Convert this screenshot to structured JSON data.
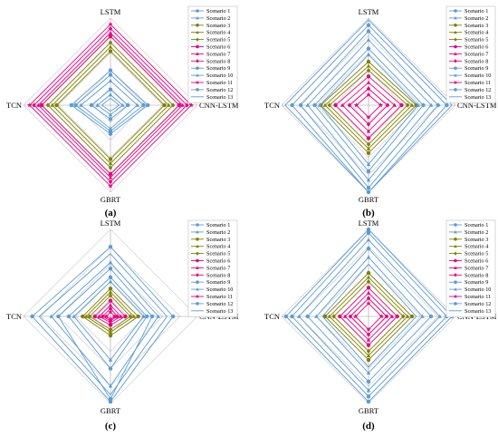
{
  "figure": {
    "panel_labels": [
      "(a)",
      "(b)",
      "(c)",
      "(d)"
    ]
  },
  "style": {
    "blue": "#5b9bd5",
    "olive": "#808000",
    "pink": "#e6007e",
    "grid": "#c8c8c8",
    "axis": "#a0a0a0"
  },
  "chart_data": [
    {
      "type": "radar",
      "panel": "(a)",
      "axes": [
        "LSTM",
        "CNN-LSTM",
        "GBRT",
        "TCN"
      ],
      "grid_rings": 5,
      "series": [
        {
          "name": "Scenario 1",
          "color": "#5b9bd5",
          "marker": "circle",
          "values": [
            0.4,
            0.43,
            0.33,
            0.45
          ]
        },
        {
          "name": "Scenario 2",
          "color": "#5b9bd5",
          "marker": "triangle",
          "values": [
            0.28,
            0.31,
            0.27,
            0.34
          ]
        },
        {
          "name": "Scenario 3",
          "color": "#808000",
          "marker": "circle",
          "values": [
            0.62,
            0.62,
            0.62,
            0.62
          ]
        },
        {
          "name": "Scenario 4",
          "color": "#808000",
          "marker": "triangle",
          "values": [
            0.67,
            0.67,
            0.67,
            0.67
          ]
        },
        {
          "name": "Scenario 5",
          "color": "#808000",
          "marker": "diamond",
          "values": [
            0.72,
            0.72,
            0.72,
            0.72
          ]
        },
        {
          "name": "Scenario 6",
          "color": "#e6007e",
          "marker": "circle",
          "values": [
            0.79,
            0.79,
            0.79,
            0.79
          ]
        },
        {
          "name": "Scenario 7",
          "color": "#e6007e",
          "marker": "triangle",
          "values": [
            0.83,
            0.83,
            0.83,
            0.83
          ]
        },
        {
          "name": "Scenario 8",
          "color": "#e6007e",
          "marker": "diamond",
          "values": [
            0.88,
            0.88,
            0.88,
            0.88
          ]
        },
        {
          "name": "Scenario 9",
          "color": "#5b9bd5",
          "marker": "circle",
          "values": [
            0.18,
            0.2,
            0.16,
            0.22
          ]
        },
        {
          "name": "Scenario 10",
          "color": "#5b9bd5",
          "marker": "triangle",
          "values": [
            0.12,
            0.14,
            0.11,
            0.15
          ]
        },
        {
          "name": "Scenario 11",
          "color": "#e6007e",
          "marker": "star",
          "values": [
            0.93,
            0.93,
            0.93,
            0.93
          ]
        },
        {
          "name": "Scenario 12",
          "color": "#5b9bd5",
          "marker": "circle",
          "values": [
            0.35,
            0.38,
            0.3,
            0.4
          ]
        },
        {
          "name": "Scenario 13",
          "color": "#5b9bd5",
          "marker": "none",
          "values": [
            0.08,
            0.1,
            0.07,
            0.1
          ]
        }
      ]
    },
    {
      "type": "radar",
      "panel": "(b)",
      "axes": [
        "LSTM",
        "CNN-LSTM",
        "GBRT",
        "TCN"
      ],
      "grid_rings": 5,
      "series": [
        {
          "name": "Scenario 1",
          "color": "#5b9bd5",
          "marker": "circle",
          "values": [
            0.85,
            0.8,
            0.95,
            0.78
          ]
        },
        {
          "name": "Scenario 2",
          "color": "#5b9bd5",
          "marker": "triangle",
          "values": [
            0.75,
            0.72,
            0.86,
            0.7
          ]
        },
        {
          "name": "Scenario 3",
          "color": "#808000",
          "marker": "circle",
          "values": [
            0.5,
            0.55,
            0.55,
            0.55
          ]
        },
        {
          "name": "Scenario 4",
          "color": "#808000",
          "marker": "triangle",
          "values": [
            0.45,
            0.5,
            0.5,
            0.5
          ]
        },
        {
          "name": "Scenario 5",
          "color": "#808000",
          "marker": "diamond",
          "values": [
            0.4,
            0.45,
            0.45,
            0.45
          ]
        },
        {
          "name": "Scenario 6",
          "color": "#e6007e",
          "marker": "circle",
          "values": [
            0.33,
            0.38,
            0.38,
            0.38
          ]
        },
        {
          "name": "Scenario 7",
          "color": "#e6007e",
          "marker": "triangle",
          "values": [
            0.26,
            0.3,
            0.3,
            0.3
          ]
        },
        {
          "name": "Scenario 8",
          "color": "#e6007e",
          "marker": "diamond",
          "values": [
            0.19,
            0.22,
            0.22,
            0.22
          ]
        },
        {
          "name": "Scenario 9",
          "color": "#5b9bd5",
          "marker": "circle",
          "values": [
            0.65,
            0.63,
            0.76,
            0.62
          ]
        },
        {
          "name": "Scenario 10",
          "color": "#5b9bd5",
          "marker": "triangle",
          "values": [
            0.58,
            0.57,
            0.68,
            0.56
          ]
        },
        {
          "name": "Scenario 11",
          "color": "#e6007e",
          "marker": "star",
          "values": [
            0.12,
            0.14,
            0.14,
            0.14
          ]
        },
        {
          "name": "Scenario 12",
          "color": "#5b9bd5",
          "marker": "circle",
          "values": [
            0.92,
            0.9,
            1.0,
            0.88
          ]
        },
        {
          "name": "Scenario 13",
          "color": "#5b9bd5",
          "marker": "none",
          "values": [
            0.98,
            0.96,
            1.0,
            0.96
          ]
        }
      ]
    },
    {
      "type": "radar",
      "panel": "(c)",
      "axes": [
        "LSTM",
        "CNN-LSTM",
        "GBRT",
        "TCN"
      ],
      "grid_rings": 5,
      "series": [
        {
          "name": "Scenario 1",
          "color": "#5b9bd5",
          "marker": "circle",
          "values": [
            0.55,
            0.48,
            0.95,
            0.6
          ]
        },
        {
          "name": "Scenario 2",
          "color": "#5b9bd5",
          "marker": "triangle",
          "values": [
            0.62,
            0.55,
            0.8,
            0.68
          ]
        },
        {
          "name": "Scenario 3",
          "color": "#808000",
          "marker": "circle",
          "values": [
            0.32,
            0.32,
            0.22,
            0.32
          ]
        },
        {
          "name": "Scenario 4",
          "color": "#808000",
          "marker": "triangle",
          "values": [
            0.28,
            0.27,
            0.18,
            0.28
          ]
        },
        {
          "name": "Scenario 5",
          "color": "#808000",
          "marker": "diamond",
          "values": [
            0.24,
            0.23,
            0.15,
            0.24
          ]
        },
        {
          "name": "Scenario 6",
          "color": "#e6007e",
          "marker": "circle",
          "values": [
            0.18,
            0.17,
            0.1,
            0.18
          ]
        },
        {
          "name": "Scenario 7",
          "color": "#e6007e",
          "marker": "triangle",
          "values": [
            0.13,
            0.12,
            0.07,
            0.13
          ]
        },
        {
          "name": "Scenario 8",
          "color": "#e6007e",
          "marker": "diamond",
          "values": [
            0.09,
            0.08,
            0.05,
            0.09
          ]
        },
        {
          "name": "Scenario 9",
          "color": "#5b9bd5",
          "marker": "circle",
          "values": [
            0.45,
            0.42,
            0.6,
            0.48
          ]
        },
        {
          "name": "Scenario 10",
          "color": "#5b9bd5",
          "marker": "triangle",
          "values": [
            0.4,
            0.38,
            0.5,
            0.42
          ]
        },
        {
          "name": "Scenario 11",
          "color": "#e6007e",
          "marker": "star",
          "values": [
            0.05,
            0.05,
            0.03,
            0.05
          ]
        },
        {
          "name": "Scenario 12",
          "color": "#5b9bd5",
          "marker": "circle",
          "values": [
            0.8,
            0.72,
            0.98,
            0.9
          ]
        },
        {
          "name": "Scenario 13",
          "color": "#5b9bd5",
          "marker": "none",
          "values": [
            0.72,
            0.65,
            0.9,
            0.82
          ]
        }
      ]
    },
    {
      "type": "radar",
      "panel": "(d)",
      "axes": [
        "LSTM",
        "CNN-LSTM",
        "GBRT",
        "TCN"
      ],
      "grid_rings": 5,
      "series": [
        {
          "name": "Scenario 1",
          "color": "#5b9bd5",
          "marker": "circle",
          "values": [
            0.96,
            0.9,
            0.92,
            0.88
          ]
        },
        {
          "name": "Scenario 2",
          "color": "#5b9bd5",
          "marker": "triangle",
          "values": [
            0.88,
            0.82,
            0.85,
            0.8
          ]
        },
        {
          "name": "Scenario 3",
          "color": "#808000",
          "marker": "circle",
          "values": [
            0.5,
            0.5,
            0.5,
            0.5
          ]
        },
        {
          "name": "Scenario 4",
          "color": "#808000",
          "marker": "triangle",
          "values": [
            0.45,
            0.45,
            0.45,
            0.45
          ]
        },
        {
          "name": "Scenario 5",
          "color": "#808000",
          "marker": "diamond",
          "values": [
            0.4,
            0.4,
            0.4,
            0.4
          ]
        },
        {
          "name": "Scenario 6",
          "color": "#e6007e",
          "marker": "circle",
          "values": [
            0.33,
            0.33,
            0.33,
            0.33
          ]
        },
        {
          "name": "Scenario 7",
          "color": "#e6007e",
          "marker": "triangle",
          "values": [
            0.27,
            0.27,
            0.27,
            0.27
          ]
        },
        {
          "name": "Scenario 8",
          "color": "#e6007e",
          "marker": "diamond",
          "values": [
            0.21,
            0.21,
            0.21,
            0.21
          ]
        },
        {
          "name": "Scenario 9",
          "color": "#5b9bd5",
          "marker": "circle",
          "values": [
            0.78,
            0.72,
            0.75,
            0.7
          ]
        },
        {
          "name": "Scenario 10",
          "color": "#5b9bd5",
          "marker": "triangle",
          "values": [
            0.68,
            0.62,
            0.65,
            0.6
          ]
        },
        {
          "name": "Scenario 11",
          "color": "#e6007e",
          "marker": "star",
          "values": [
            0.15,
            0.15,
            0.15,
            0.15
          ]
        },
        {
          "name": "Scenario 12",
          "color": "#5b9bd5",
          "marker": "circle",
          "values": [
            1.0,
            0.96,
            0.98,
            0.95
          ]
        },
        {
          "name": "Scenario 13",
          "color": "#5b9bd5",
          "marker": "none",
          "values": [
            0.6,
            0.55,
            0.58,
            0.53
          ]
        }
      ]
    }
  ]
}
